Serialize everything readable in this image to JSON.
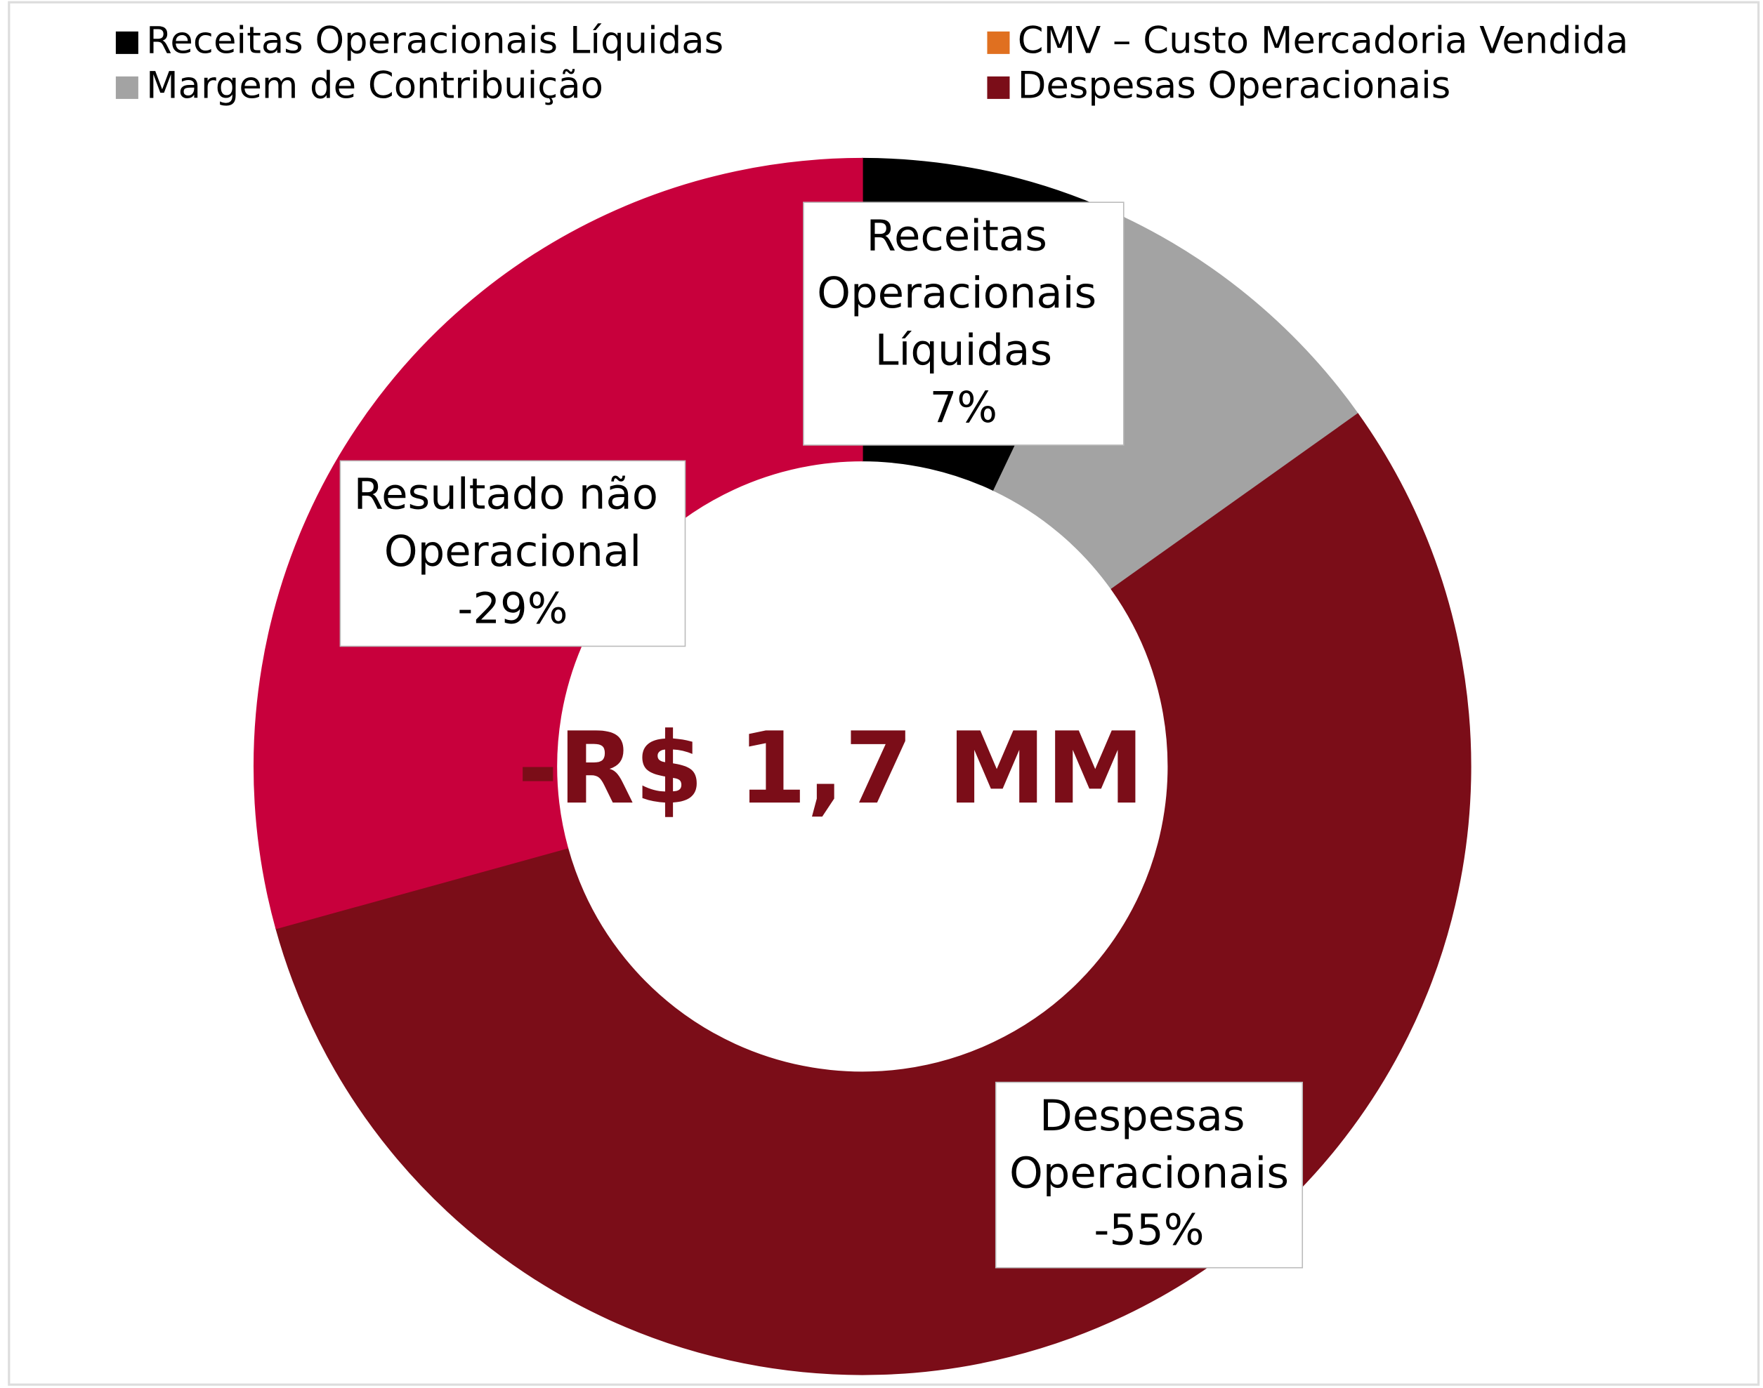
{
  "chart_data": {
    "type": "donut",
    "categories": [
      "Receitas Operacionais Líquidas",
      "CMV – Custo Mercadoria Vendida",
      "Margem de Contribuição",
      "Despesas Operacionais",
      "Resultado não Operacional"
    ],
    "values": [
      7,
      0,
      8,
      -55,
      -29
    ],
    "value_labels": [
      "7%",
      null,
      null,
      "-55%",
      "-29%"
    ],
    "colors": [
      "#000000",
      "#e07020",
      "#a3a3a3",
      "#7b0d18",
      "#c8003c"
    ],
    "legend_entries": [
      "Receitas Operacionais Líquidas",
      "CMV – Custo Mercadoria Vendida",
      "Margem de Contribuição",
      "Despesas Operacionais"
    ],
    "center_label": "-R$ 1,7 MM"
  }
}
